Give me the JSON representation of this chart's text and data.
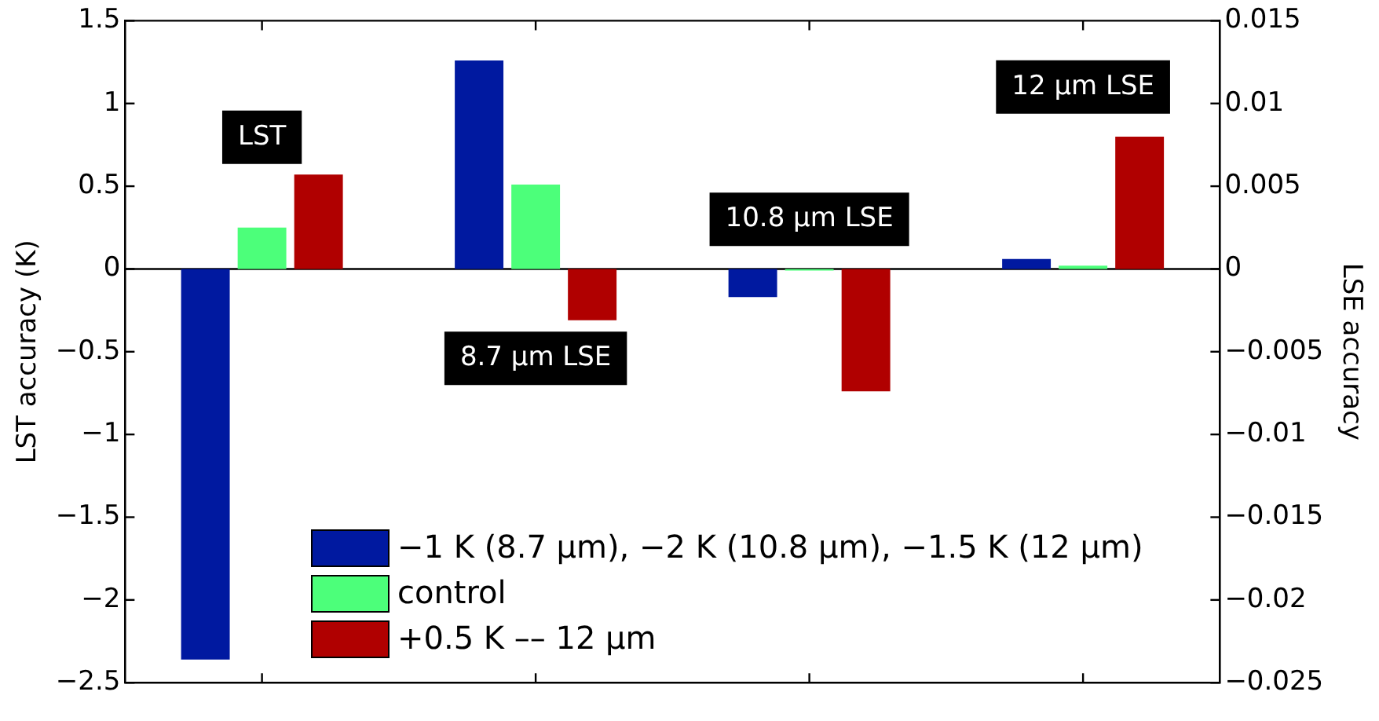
{
  "chart_data": {
    "type": "bar",
    "ylabel": "LST accuracy (K)",
    "y2label": "LSE accuracy",
    "categories": [
      null,
      null,
      null,
      null
    ],
    "series": [
      {
        "name": "−1 K (8.7 μm), −2 K (10.8 μm), −1.5 K (12 μm)",
        "color": "#0019a0",
        "values": [
          -2.36,
          1.26,
          -0.17,
          0.06
        ]
      },
      {
        "name": "control",
        "color": "#4cff7a",
        "values": [
          0.25,
          0.51,
          -0.01,
          0.02
        ]
      },
      {
        "name": "+0.5 K –– 12 μm",
        "color": "#b00000",
        "values": [
          0.57,
          -0.31,
          -0.74,
          0.8
        ]
      }
    ],
    "ylim": [
      -2.5,
      1.5
    ],
    "yticks": [
      -2.5,
      -2,
      -1.5,
      -1,
      -0.5,
      0,
      0.5,
      1,
      1.5
    ],
    "y2lim": [
      -0.025,
      0.015
    ],
    "y2ticks": [
      -0.025,
      -0.02,
      -0.015,
      -0.01,
      -0.005,
      0,
      0.005,
      0.01,
      0.015
    ],
    "annotations": [
      "LST",
      "8.7 μm LSE",
      "10.8 μm LSE",
      "12 μm LSE"
    ],
    "ref_lines": [
      {
        "axis": "y",
        "value": 0,
        "color": "#000000"
      }
    ],
    "grid": false,
    "legend": "bottom"
  }
}
